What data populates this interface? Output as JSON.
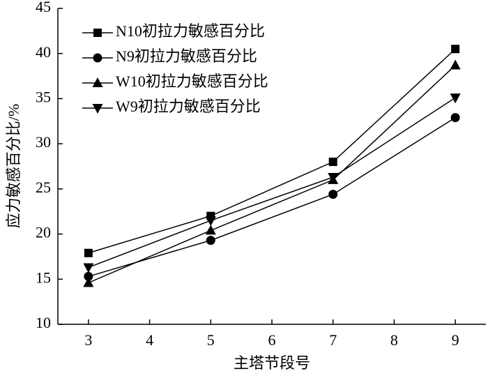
{
  "chart_data": {
    "type": "line",
    "x_label": "主塔节段号",
    "y_label": "应力敏感百分比/%",
    "x": [
      3,
      5,
      7,
      9
    ],
    "series": [
      {
        "name": "N10初拉力敏感百分比",
        "color": "#000000",
        "marker": "square",
        "values": [
          17.9,
          22.0,
          28.0,
          40.5
        ]
      },
      {
        "name": "N9初拉力敏感百分比",
        "color": "#000000",
        "marker": "circle",
        "values": [
          15.3,
          19.3,
          24.4,
          32.9
        ]
      },
      {
        "name": "W10初拉力敏感百分比",
        "color": "#000000",
        "marker": "triangle-up",
        "values": [
          14.6,
          20.4,
          26.0,
          38.7
        ]
      },
      {
        "name": "W9初拉力敏感百分比",
        "color": "#000000",
        "marker": "triangle-down",
        "values": [
          16.3,
          21.5,
          26.3,
          35.1
        ]
      }
    ],
    "xlim": [
      2.5,
      9.5
    ],
    "xticks": [
      3,
      4,
      5,
      6,
      7,
      8,
      9
    ],
    "ylim": [
      10,
      45
    ],
    "yticks": [
      10,
      15,
      20,
      25,
      30,
      35,
      40,
      45
    ],
    "legend": "upper-left"
  }
}
